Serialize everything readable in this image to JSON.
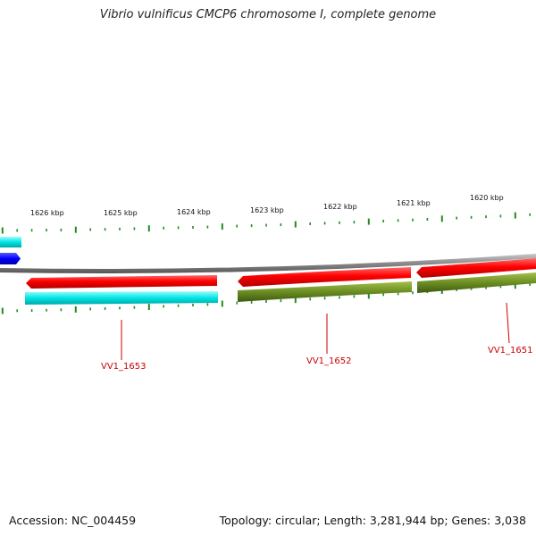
{
  "title": "Vibrio vulnificus CMCP6 chromosome I, complete genome",
  "footer": {
    "accession": "Accession: NC_004459",
    "summary": "Topology: circular; Length: 3,281,944 bp; Genes: 3,038"
  },
  "ruler": {
    "labels": [
      "1626 kbp",
      "1625 kbp",
      "1624 kbp",
      "1623 kbp",
      "1622 kbp",
      "1621 kbp",
      "1620 kbp"
    ],
    "tick_color": "#228B22"
  },
  "genes": [
    {
      "name": "VV1_1653",
      "strand": "forward-track",
      "color": "#ff0000"
    },
    {
      "name": "VV1_1652",
      "strand": "forward-track",
      "color": "#ff0000"
    },
    {
      "name": "VV1_1651",
      "strand": "forward-track",
      "color": "#ff0000"
    }
  ],
  "features": {
    "cds_color": "#6b8e23",
    "rna_color": "#00e5e5",
    "other_gene_color": "#0000ff",
    "backbone_color": "#808080"
  }
}
